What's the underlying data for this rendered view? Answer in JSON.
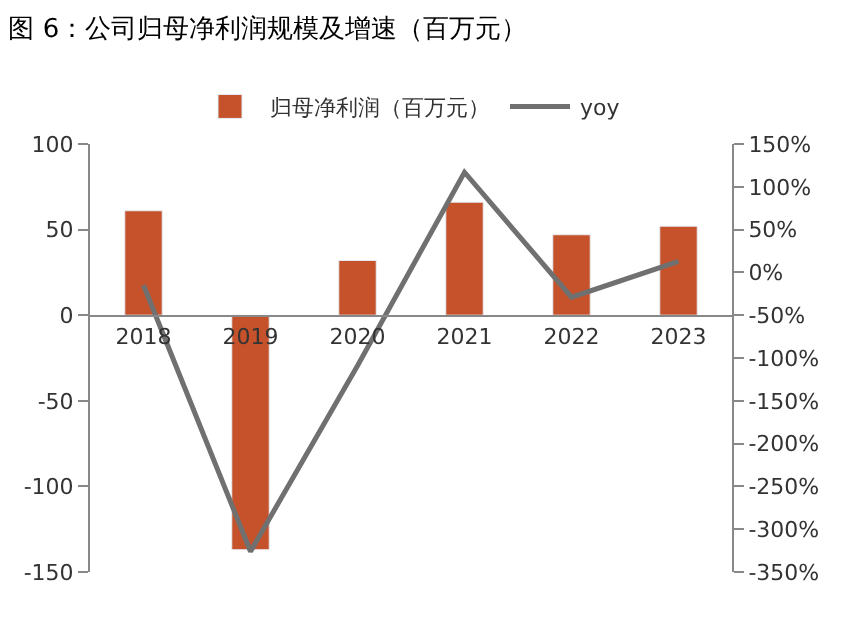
{
  "chart_data": {
    "type": "bar",
    "title": "图 6：公司归母净利润规模及增速（百万元）",
    "categories": [
      "2018",
      "2019",
      "2020",
      "2021",
      "2022",
      "2023"
    ],
    "series": [
      {
        "name": "归母净利润（百万元）",
        "color": "#c5522a",
        "values": [
          61,
          -137,
          32,
          66,
          47,
          52
        ]
      },
      {
        "name": "yoy",
        "type": "line",
        "axis": "y2",
        "color": "#707070",
        "values": [
          -15,
          -326,
          -109,
          117,
          -29,
          13
        ]
      }
    ],
    "ylim": [
      -150,
      100
    ],
    "yticks": [
      -150,
      -100,
      -50,
      0,
      50,
      100
    ],
    "y2lim": [
      -350,
      150
    ],
    "y2ticks": [
      {
        "value": -350,
        "label": "-350%"
      },
      {
        "value": -300,
        "label": "-300%"
      },
      {
        "value": -250,
        "label": "-250%"
      },
      {
        "value": -200,
        "label": "-200%"
      },
      {
        "value": -150,
        "label": "-150%"
      },
      {
        "value": -100,
        "label": "-100%"
      },
      {
        "value": -50,
        "label": "-50%"
      },
      {
        "value": 0,
        "label": "0%"
      },
      {
        "value": 50,
        "label": "50%"
      },
      {
        "value": 100,
        "label": "100%"
      },
      {
        "value": 150,
        "label": "150%"
      }
    ],
    "legend": "top",
    "marker": "none",
    "line_style": "solid"
  }
}
